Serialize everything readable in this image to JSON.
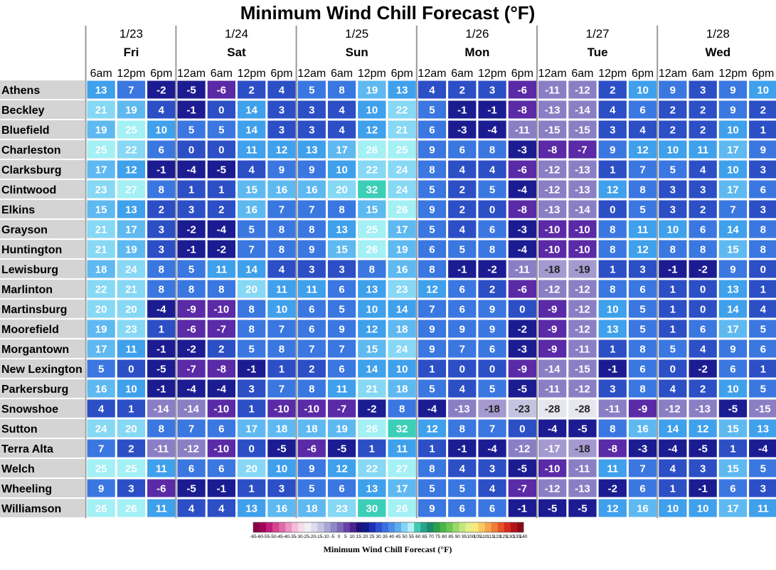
{
  "chart_data": {
    "type": "heatmap",
    "title": "Minimum Wind Chill Forecast (°F)",
    "days": [
      {
        "date": "1/23",
        "day": "Fri",
        "times": [
          "6am",
          "12pm",
          "6pm"
        ]
      },
      {
        "date": "1/24",
        "day": "Sat",
        "times": [
          "12am",
          "6am",
          "12pm",
          "6pm"
        ]
      },
      {
        "date": "1/25",
        "day": "Sun",
        "times": [
          "12am",
          "6am",
          "12pm",
          "6pm"
        ]
      },
      {
        "date": "1/26",
        "day": "Mon",
        "times": [
          "12am",
          "6am",
          "12pm",
          "6pm"
        ]
      },
      {
        "date": "1/27",
        "day": "Tue",
        "times": [
          "12am",
          "6am",
          "12pm",
          "6pm"
        ]
      },
      {
        "date": "1/28",
        "day": "Wed",
        "times": [
          "12am",
          "6am",
          "12pm",
          "6pm"
        ]
      }
    ],
    "rows": [
      {
        "city": "Athens",
        "values": [
          13,
          7,
          -2,
          -5,
          -6,
          2,
          4,
          5,
          8,
          19,
          13,
          4,
          2,
          3,
          -6,
          -11,
          -12,
          2,
          10,
          9,
          3,
          9,
          10
        ]
      },
      {
        "city": "Beckley",
        "values": [
          21,
          19,
          4,
          -1,
          0,
          14,
          3,
          3,
          4,
          10,
          22,
          5,
          -1,
          -1,
          -8,
          -13,
          -14,
          4,
          6,
          2,
          2,
          9,
          2
        ]
      },
      {
        "city": "Bluefield",
        "values": [
          19,
          25,
          10,
          5,
          5,
          14,
          3,
          3,
          4,
          12,
          21,
          6,
          -3,
          -4,
          -11,
          -15,
          -15,
          3,
          4,
          2,
          2,
          10,
          1
        ]
      },
      {
        "city": "Charleston",
        "values": [
          25,
          22,
          6,
          0,
          0,
          11,
          12,
          13,
          17,
          26,
          25,
          9,
          6,
          8,
          -3,
          -8,
          -7,
          9,
          12,
          10,
          11,
          17,
          9
        ]
      },
      {
        "city": "Clarksburg",
        "values": [
          17,
          12,
          -1,
          -4,
          -5,
          4,
          9,
          9,
          10,
          22,
          24,
          8,
          4,
          4,
          -6,
          -12,
          -13,
          1,
          7,
          5,
          4,
          10,
          3
        ]
      },
      {
        "city": "Clintwood",
        "values": [
          23,
          27,
          8,
          1,
          1,
          15,
          16,
          16,
          20,
          32,
          24,
          5,
          2,
          5,
          -4,
          -12,
          -13,
          12,
          8,
          3,
          3,
          17,
          6
        ]
      },
      {
        "city": "Elkins",
        "values": [
          15,
          13,
          2,
          3,
          2,
          16,
          7,
          7,
          8,
          15,
          26,
          9,
          2,
          0,
          -8,
          -13,
          -14,
          0,
          5,
          3,
          2,
          7,
          3
        ]
      },
      {
        "city": "Grayson",
        "values": [
          21,
          17,
          3,
          -2,
          -4,
          5,
          8,
          8,
          13,
          25,
          17,
          5,
          4,
          6,
          -3,
          -10,
          -10,
          8,
          11,
          10,
          6,
          14,
          8
        ]
      },
      {
        "city": "Huntington",
        "values": [
          21,
          19,
          3,
          -1,
          -2,
          7,
          8,
          9,
          15,
          26,
          19,
          6,
          5,
          8,
          -4,
          -10,
          -10,
          8,
          12,
          8,
          8,
          15,
          8
        ]
      },
      {
        "city": "Lewisburg",
        "values": [
          18,
          24,
          8,
          5,
          11,
          14,
          4,
          3,
          3,
          8,
          16,
          8,
          -1,
          -2,
          -11,
          -18,
          -19,
          1,
          3,
          -1,
          -2,
          9,
          0
        ]
      },
      {
        "city": "Marlinton",
        "values": [
          22,
          21,
          8,
          8,
          8,
          20,
          11,
          11,
          6,
          13,
          23,
          12,
          6,
          2,
          -6,
          -12,
          -12,
          8,
          6,
          1,
          0,
          13,
          1
        ]
      },
      {
        "city": "Martinsburg",
        "values": [
          20,
          20,
          -4,
          -9,
          -10,
          8,
          10,
          6,
          5,
          10,
          14,
          7,
          6,
          9,
          0,
          -9,
          -12,
          10,
          5,
          1,
          0,
          14,
          4
        ]
      },
      {
        "city": "Moorefield",
        "values": [
          19,
          23,
          1,
          -6,
          -7,
          8,
          7,
          6,
          9,
          12,
          18,
          9,
          9,
          9,
          -2,
          -9,
          -12,
          13,
          5,
          1,
          6,
          17,
          5
        ]
      },
      {
        "city": "Morgantown",
        "values": [
          17,
          11,
          -1,
          -2,
          2,
          5,
          8,
          7,
          7,
          15,
          24,
          9,
          7,
          6,
          -3,
          -9,
          -11,
          1,
          8,
          5,
          4,
          9,
          6
        ]
      },
      {
        "city": "New Lexington",
        "values": [
          5,
          0,
          -5,
          -7,
          -8,
          -1,
          1,
          2,
          6,
          14,
          10,
          1,
          0,
          0,
          -9,
          -14,
          -15,
          -1,
          6,
          0,
          -2,
          6,
          1
        ]
      },
      {
        "city": "Parkersburg",
        "values": [
          16,
          10,
          -1,
          -4,
          -4,
          3,
          7,
          8,
          11,
          21,
          18,
          5,
          4,
          5,
          -5,
          -11,
          -12,
          3,
          8,
          4,
          2,
          10,
          5
        ]
      },
      {
        "city": "Snowshoe",
        "values": [
          4,
          1,
          -14,
          -14,
          -10,
          1,
          -10,
          -10,
          -7,
          -2,
          8,
          -4,
          -13,
          -18,
          -23,
          -28,
          -28,
          -11,
          -9,
          -12,
          -13,
          -5,
          -15
        ]
      },
      {
        "city": "Sutton",
        "values": [
          24,
          20,
          8,
          7,
          6,
          17,
          18,
          18,
          19,
          26,
          32,
          12,
          8,
          7,
          0,
          -4,
          -5,
          8,
          16,
          14,
          12,
          15,
          13
        ]
      },
      {
        "city": "Terra Alta",
        "values": [
          7,
          2,
          -11,
          -12,
          -10,
          0,
          -5,
          -6,
          -5,
          1,
          11,
          1,
          -1,
          -4,
          -12,
          -17,
          -18,
          -8,
          -3,
          -4,
          -5,
          1,
          -4
        ]
      },
      {
        "city": "Welch",
        "values": [
          25,
          25,
          11,
          6,
          6,
          20,
          10,
          9,
          12,
          22,
          27,
          8,
          4,
          3,
          -5,
          -10,
          -11,
          11,
          7,
          4,
          3,
          15,
          5
        ]
      },
      {
        "city": "Wheeling",
        "values": [
          9,
          3,
          -6,
          -5,
          -1,
          1,
          3,
          5,
          6,
          13,
          17,
          5,
          5,
          4,
          -7,
          -12,
          -13,
          -2,
          6,
          1,
          -1,
          6,
          3
        ]
      },
      {
        "city": "Williamson",
        "values": [
          26,
          26,
          11,
          4,
          4,
          13,
          16,
          18,
          23,
          30,
          26,
          9,
          6,
          6,
          -1,
          -5,
          -5,
          12,
          16,
          10,
          10,
          17,
          11
        ]
      }
    ],
    "colorbar": {
      "title": "Minimum Wind Chill Forecast (°F)",
      "ticks": [
        "-65",
        "-60",
        "-55",
        "-50",
        "-45",
        "-40",
        "-35",
        "-30",
        "-25",
        "-20",
        "-15",
        "-10",
        "-5",
        "0",
        "5",
        "10",
        "15",
        "20",
        "25",
        "30",
        "35",
        "40",
        "45",
        "50",
        "55",
        "60",
        "65",
        "70",
        "75",
        "80",
        "85",
        "90",
        "95",
        "100",
        "105",
        "110",
        "115",
        "120",
        "125",
        "130",
        "135",
        "140"
      ],
      "colors": [
        "#8a0045",
        "#a3005c",
        "#bf1f7a",
        "#d4448f",
        "#e06aa8",
        "#eb93c2",
        "#f3bcd9",
        "#f7dcea",
        "#f0f0f4",
        "#dcdcec",
        "#c4c4e2",
        "#aaa6d6",
        "#9088c6",
        "#7b68b4",
        "#6b3fa8",
        "#4a2590",
        "#22107a",
        "#101a8c",
        "#1f2fb3",
        "#2d4fd0",
        "#3b6fdf",
        "#4a8ee8",
        "#5fadef",
        "#86d3f3",
        "#b3f0f5",
        "#44c9b1",
        "#26a48d",
        "#1a8a6c",
        "#2aa14a",
        "#49b54a",
        "#70c655",
        "#9ad86a",
        "#c2e77d",
        "#e4f08a",
        "#fae97a",
        "#fbc764",
        "#f8a34e",
        "#f07c3a",
        "#e7512a",
        "#d62a1f",
        "#b3141b",
        "#8a0b16"
      ]
    }
  }
}
